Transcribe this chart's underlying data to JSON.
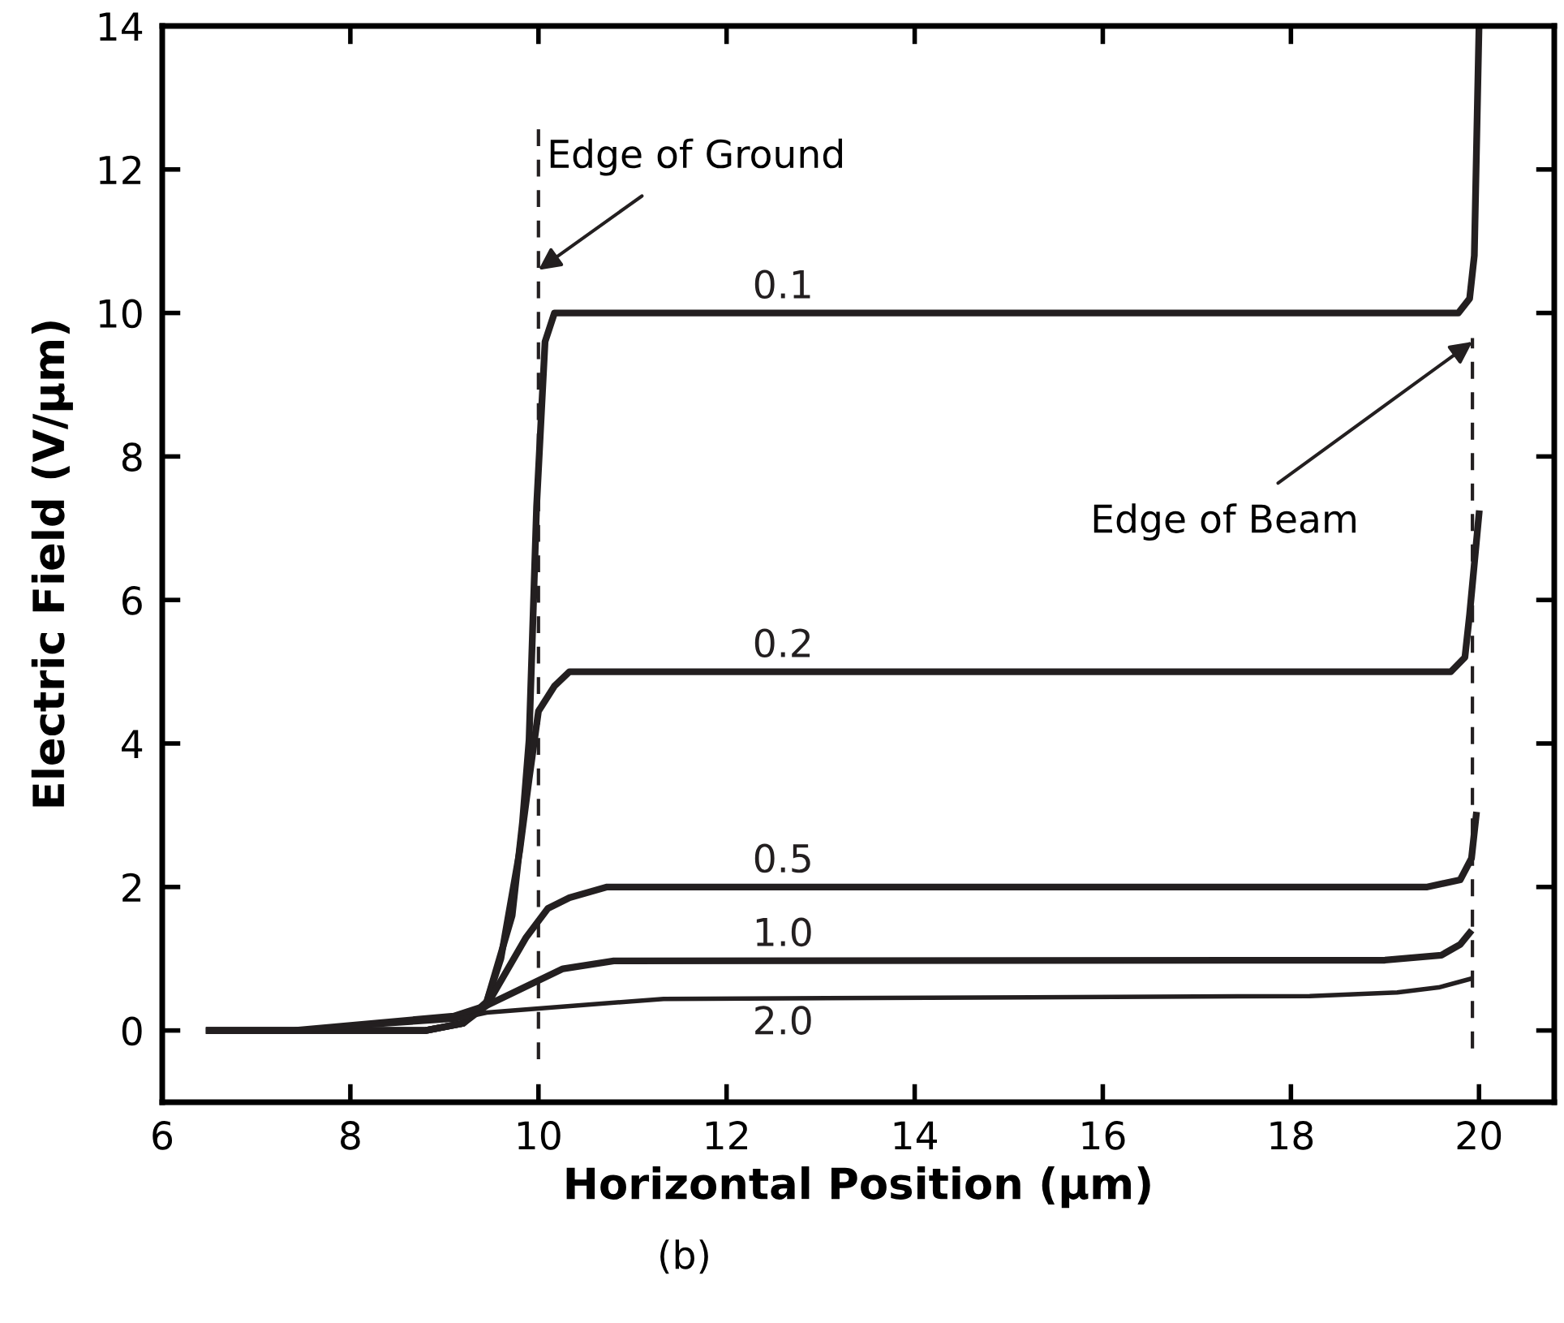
{
  "chart_data": {
    "type": "line",
    "xlabel": "Horizontal Position (μm)",
    "ylabel": "Electric Field (V/μm)",
    "xlim": [
      6,
      20.8
    ],
    "xticks": [
      6,
      8,
      10,
      12,
      14,
      16,
      18,
      20
    ],
    "ylim": [
      -1,
      14
    ],
    "yticks": [
      0,
      2,
      4,
      6,
      8,
      10,
      12,
      14
    ],
    "grid": false,
    "legend": false,
    "marker": "none",
    "line_style": "solid",
    "series": [
      {
        "name": "0.1",
        "color": "#231f20",
        "x": [
          6.5,
          8.8,
          9.2,
          9.45,
          9.72,
          9.83,
          9.9,
          9.98,
          10.07,
          10.17,
          19.78,
          19.9,
          19.95,
          20.0
        ],
        "values": [
          0,
          0,
          0.1,
          0.4,
          1.6,
          2.9,
          4.05,
          7.3,
          9.6,
          10,
          10,
          10.2,
          10.8,
          14
        ]
      },
      {
        "name": "0.2",
        "color": "#231f20",
        "x": [
          6.5,
          8.8,
          9.2,
          9.45,
          9.6,
          9.8,
          9.9,
          10.0,
          10.17,
          10.33,
          19.7,
          19.85,
          19.9,
          20.0
        ],
        "values": [
          0,
          0,
          0.1,
          0.4,
          1.0,
          2.5,
          3.5,
          4.45,
          4.8,
          5,
          5,
          5.2,
          5.8,
          7.2
        ]
      },
      {
        "name": "0.5",
        "color": "#231f20",
        "x": [
          6.5,
          8.8,
          9.2,
          9.45,
          9.87,
          10.1,
          10.33,
          10.73,
          19.45,
          19.8,
          19.92,
          19.97
        ],
        "values": [
          0,
          0,
          0.1,
          0.35,
          1.3,
          1.7,
          1.85,
          2.0,
          2.0,
          2.1,
          2.4,
          3.0
        ]
      },
      {
        "name": "1.0",
        "color": "#231f20",
        "x": [
          6.5,
          7.4,
          9.1,
          9.45,
          10.26,
          10.8,
          19.0,
          19.6,
          19.8,
          19.9
        ],
        "values": [
          0,
          0,
          0.2,
          0.35,
          0.86,
          0.97,
          0.98,
          1.05,
          1.2,
          1.36
        ]
      },
      {
        "name": "2.0",
        "color": "#231f20",
        "x": [
          6.5,
          7.4,
          9.1,
          9.45,
          10.42,
          11.33,
          18.2,
          19.13,
          19.57,
          19.91
        ],
        "values": [
          0,
          0,
          0.15,
          0.25,
          0.35,
          0.44,
          0.48,
          0.53,
          0.6,
          0.72
        ]
      }
    ],
    "ref_lines": [
      {
        "axis": "x",
        "value": 10.0,
        "color": "#231f20",
        "line_style": "dashed"
      },
      {
        "axis": "x",
        "value": 19.93,
        "color": "#231f20",
        "line_style": "dashed"
      }
    ],
    "annotations": [
      {
        "text": "Edge of Ground",
        "x": 10.0,
        "y": 10.6
      },
      {
        "text": "Edge of Beam",
        "x": 19.93,
        "y": 9.6
      },
      "(b)"
    ]
  }
}
